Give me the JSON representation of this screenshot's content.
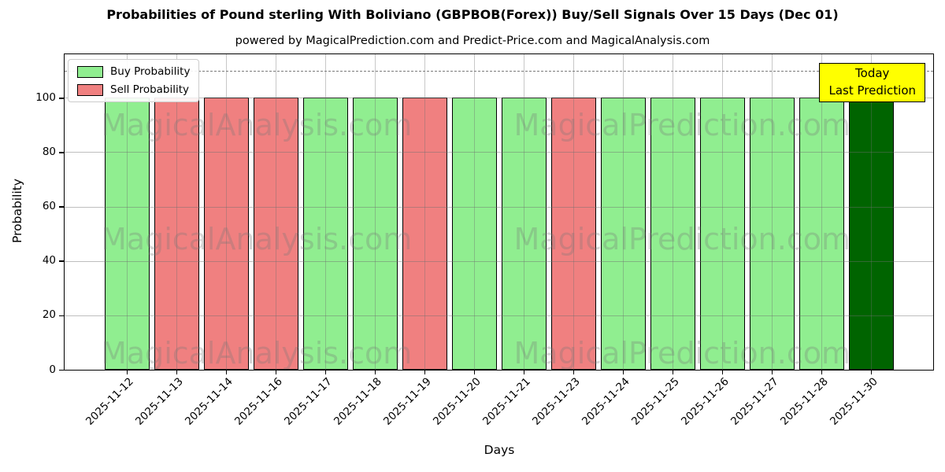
{
  "title": "Probabilities of Pound sterling With Boliviano (GBPBOB(Forex)) Buy/Sell Signals Over 15 Days (Dec 01)",
  "subtitle": "powered by MagicalPrediction.com and Predict-Price.com and MagicalAnalysis.com",
  "chart_data": {
    "type": "bar",
    "title": "Probabilities of Pound sterling With Boliviano (GBPBOB(Forex)) Buy/Sell Signals Over 15 Days (Dec 01)",
    "xlabel": "Days",
    "ylabel": "Probability",
    "ylim": [
      0,
      116
    ],
    "yticks": [
      0,
      20,
      40,
      60,
      80,
      100
    ],
    "grid": true,
    "dashed_line_y": 110,
    "categories": [
      "2025-11-12",
      "2025-11-13",
      "2025-11-14",
      "2025-11-16",
      "2025-11-17",
      "2025-11-18",
      "2025-11-19",
      "2025-11-20",
      "2025-11-21",
      "2025-11-23",
      "2025-11-24",
      "2025-11-25",
      "2025-11-26",
      "2025-11-27",
      "2025-11-28",
      "2025-11-30"
    ],
    "values": [
      100,
      100,
      100,
      100,
      100,
      100,
      100,
      100,
      100,
      100,
      100,
      100,
      100,
      100,
      100,
      100
    ],
    "bar_signals": [
      "buy",
      "sell",
      "sell",
      "sell",
      "buy",
      "buy",
      "sell",
      "buy",
      "buy",
      "sell",
      "buy",
      "buy",
      "buy",
      "buy",
      "buy",
      "today"
    ],
    "legend": {
      "position": "upper-left",
      "entries": [
        {
          "label": "Buy Probability",
          "color": "#90EE90"
        },
        {
          "label": "Sell Probability",
          "color": "#F08080"
        }
      ]
    },
    "colors": {
      "buy": "#90EE90",
      "sell": "#F08080",
      "today": "#006400",
      "edge": "#000000",
      "grid": "#6e6e6e",
      "dashed": "#7a7a7a",
      "annotation_bg": "#ffff00"
    },
    "annotation": {
      "lines": [
        "Today",
        "Last Prediction"
      ],
      "bg": "#ffff00",
      "border": "#000000"
    },
    "watermarks": [
      "MagicalAnalysis.com",
      "MagicalPrediction.com"
    ]
  }
}
